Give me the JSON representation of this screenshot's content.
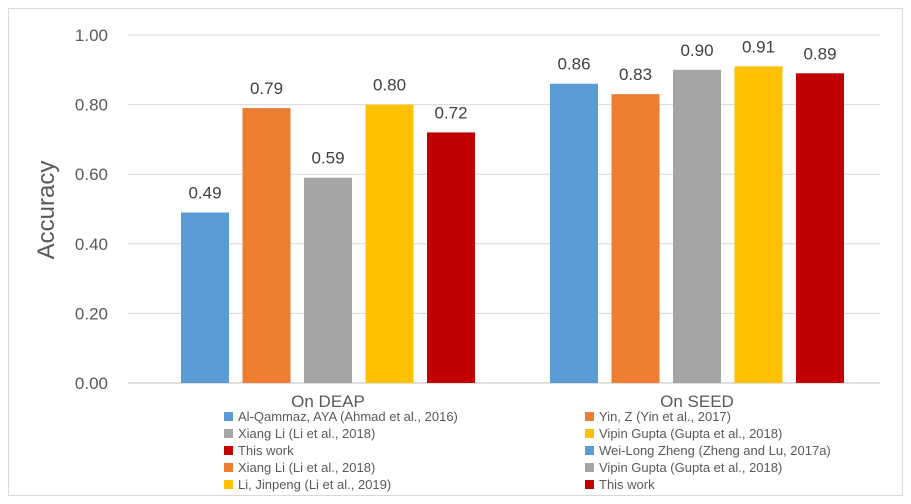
{
  "chart_data": {
    "type": "bar",
    "title": "",
    "xlabel": "",
    "ylabel": "Accuracy",
    "ylim": [
      0,
      1
    ],
    "yticks": [
      "0.00",
      "0.20",
      "0.40",
      "0.60",
      "0.80",
      "1.00"
    ],
    "grid": true,
    "legend_position": "bottom",
    "groups": [
      {
        "category": "On DEAP",
        "bars": [
          {
            "name": "Al-Qammaz, AYA (Ahmad et al., 2016)",
            "value": 0.49,
            "label": "0.49",
            "color": "#5b9bd5"
          },
          {
            "name": "Yin, Z (Yin et al., 2017)",
            "value": 0.79,
            "label": "0.79",
            "color": "#ed7d31"
          },
          {
            "name": "Xiang Li (Li et al., 2018)",
            "value": 0.59,
            "label": "0.59",
            "color": "#a5a5a5"
          },
          {
            "name": "Vipin Gupta (Gupta et al., 2018)",
            "value": 0.8,
            "label": "0.80",
            "color": "#ffc000"
          },
          {
            "name": "This work",
            "value": 0.72,
            "label": "0.72",
            "color": "#c00000"
          }
        ]
      },
      {
        "category": "On SEED",
        "bars": [
          {
            "name": "Wei-Long Zheng (Zheng and Lu, 2017a)",
            "value": 0.86,
            "label": "0.86",
            "color": "#5b9bd5"
          },
          {
            "name": "Xiang Li (Li et al., 2018)",
            "value": 0.83,
            "label": "0.83",
            "color": "#ed7d31"
          },
          {
            "name": "Vipin Gupta (Gupta et al., 2018)",
            "value": 0.9,
            "label": "0.90",
            "color": "#a5a5a5"
          },
          {
            "name": "Li, Jinpeng (Li et al., 2019)",
            "value": 0.91,
            "label": "0.91",
            "color": "#ffc000"
          },
          {
            "name": "This work",
            "value": 0.89,
            "label": "0.89",
            "color": "#c00000"
          }
        ]
      }
    ],
    "legend": [
      {
        "label": "Al-Qammaz, AYA (Ahmad et al., 2016)",
        "color": "#5b9bd5"
      },
      {
        "label": "Yin, Z (Yin et al., 2017)",
        "color": "#ed7d31"
      },
      {
        "label": "Xiang Li (Li et al., 2018)",
        "color": "#a5a5a5"
      },
      {
        "label": "Vipin Gupta (Gupta et al., 2018)",
        "color": "#ffc000"
      },
      {
        "label": "This work",
        "color": "#c00000"
      },
      {
        "label": "Wei-Long Zheng (Zheng and Lu, 2017a)",
        "color": "#5b9bd5"
      },
      {
        "label": "Xiang Li (Li et al., 2018)",
        "color": "#ed7d31"
      },
      {
        "label": "Vipin Gupta (Gupta et al., 2018)",
        "color": "#a5a5a5"
      },
      {
        "label": "Li, Jinpeng (Li et al., 2019)",
        "color": "#ffc000"
      },
      {
        "label": "This work",
        "color": "#c00000"
      }
    ],
    "colors": {
      "grid": "#d9d9d9",
      "axis": "#bfbfbf",
      "text": "#595959"
    }
  }
}
